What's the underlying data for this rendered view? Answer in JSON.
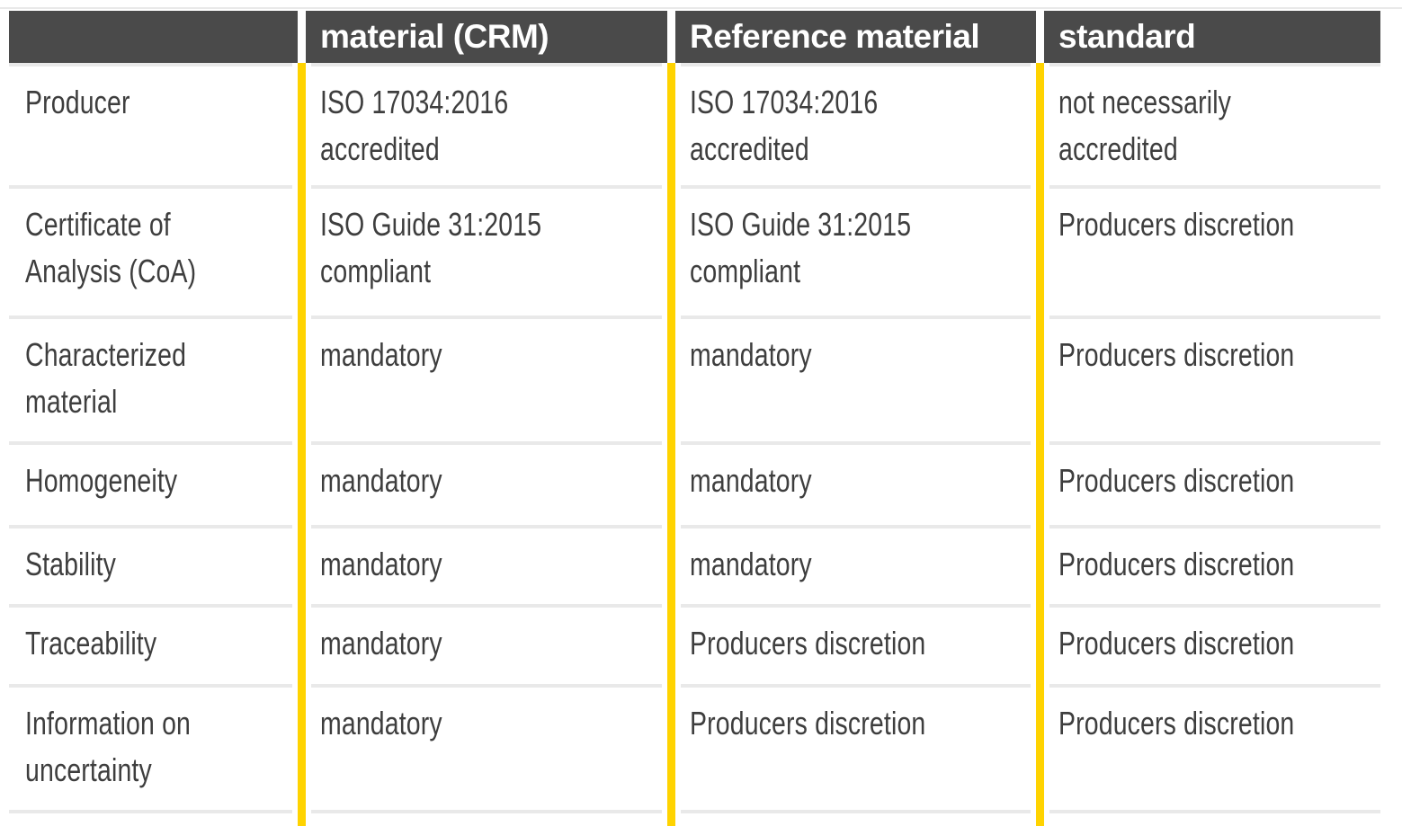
{
  "colors": {
    "accent_yellow": "#ffd300",
    "header_background": "#4a4a4a",
    "header_text": "#ffffff",
    "body_text": "#3e3e3e",
    "separator": "#e9e9e9"
  },
  "table": {
    "headers": [
      "",
      "material (CRM)",
      "Reference material",
      "standard"
    ],
    "rows": [
      {
        "cells": [
          "Producer",
          "ISO 17034:2016 accredited",
          "ISO 17034:2016 accredited",
          "not necessarily\naccredited"
        ]
      },
      {
        "cells": [
          "Certificate of\nAnalysis (CoA)",
          "ISO Guide 31:2015\ncompliant",
          "ISO Guide 31:2015\ncompliant",
          "Producers discretion"
        ]
      },
      {
        "cells": [
          "Characterized\nmaterial",
          "mandatory",
          "mandatory",
          "Producers discretion"
        ]
      },
      {
        "cells": [
          "Homogeneity",
          "mandatory",
          "mandatory",
          "Producers discretion"
        ]
      },
      {
        "cells": [
          "Stability",
          "mandatory",
          "mandatory",
          "Producers discretion"
        ]
      },
      {
        "cells": [
          "Traceability",
          "mandatory",
          "Producers discretion",
          "Producers discretion"
        ]
      },
      {
        "cells": [
          "Information on\nuncertainty",
          "mandatory",
          "Producers discretion",
          "Producers discretion"
        ]
      }
    ]
  },
  "chart_data": {
    "type": "table",
    "columns": [
      "",
      "material (CRM)",
      "Reference material",
      "standard"
    ],
    "rows": [
      [
        "Producer",
        "ISO 17034:2016 accredited",
        "ISO 17034:2016 accredited",
        "not necessarily accredited"
      ],
      [
        "Certificate of Analysis (CoA)",
        "ISO Guide 31:2015 compliant",
        "ISO Guide 31:2015 compliant",
        "Producers discretion"
      ],
      [
        "Characterized material",
        "mandatory",
        "mandatory",
        "Producers discretion"
      ],
      [
        "Homogeneity",
        "mandatory",
        "mandatory",
        "Producers discretion"
      ],
      [
        "Stability",
        "mandatory",
        "mandatory",
        "Producers discretion"
      ],
      [
        "Traceability",
        "mandatory",
        "Producers discretion",
        "Producers discretion"
      ],
      [
        "Information on uncertainty",
        "mandatory",
        "Producers discretion",
        "Producers discretion"
      ]
    ]
  }
}
